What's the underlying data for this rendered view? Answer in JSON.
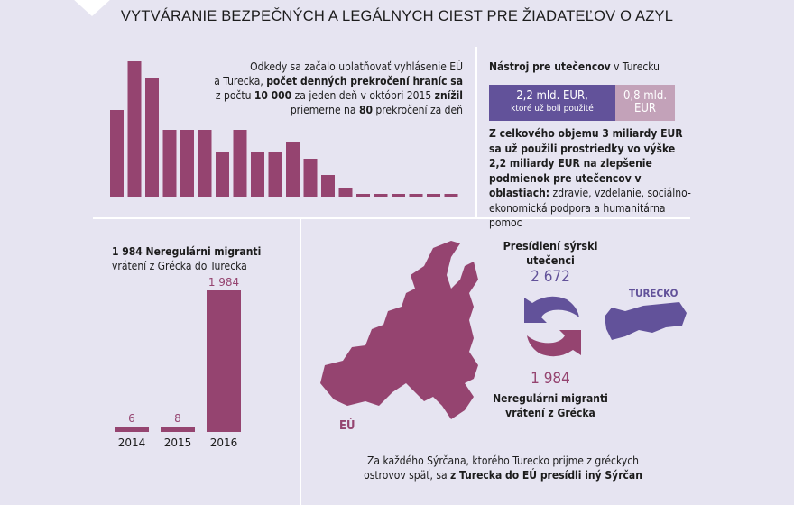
{
  "title": "VYTVÁRANIE BEZPEČNÝCH A LEGÁLNYCH CIEST PRE ŽIADATEĽOV O AZYL",
  "crossings": {
    "text_1": "Odkedy sa začalo uplatňovať vyhlásenie EÚ",
    "text_2a": "a Turecka, ",
    "text_2b": "počet denných prekročení hraníc sa",
    "text_3a": "z počtu ",
    "text_3b": "10 000",
    "text_3c": " za jeden deň v októbri 2015 ",
    "text_3d": "znížil",
    "text_4a": "priemerne na ",
    "text_4b": "80",
    "text_4c": " prekročení za deň"
  },
  "facility": {
    "heading_bold": "Nástroj pre utečencov",
    "heading_rest": " v Turecku",
    "used_value": "2,2 mld. EUR,",
    "used_label": "ktoré už boli použité",
    "remaining_1": "0,8 mld.",
    "remaining_2": "EUR",
    "used_fraction": 0.733,
    "body_bold": "Z celkového objemu 3 miliardy EUR sa už použili prostriedky vo výške 2,2 miliardy EUR na zlepšenie podmienok pre utečencov v oblastiach:",
    "body_rest": "zdravie, vzdelanie, sociálno-ekonomická podpora a humanitárna pomoc",
    "colors": {
      "used": "#62529a",
      "remaining": "#c3a2b9"
    }
  },
  "returns": {
    "heading_bold": "1 984 Neregulárni migranti",
    "heading_rest": "vrátení z Grécka do Turecka"
  },
  "swap": {
    "resettled_label": "Presídlení sýrski utečenci",
    "resettled_value": "2 672",
    "returned_value": "1 984",
    "returned_label_1": "Neregulárni migranti",
    "returned_label_2": "vrátení z Grécka",
    "turkey_label": "TURECKO",
    "eu_label": "EÚ",
    "footer_1": "Za každého Sýrčana, ktorého Turecko prijme z gréckych",
    "footer_2a": "ostrovov späť, sa ",
    "footer_2b": "z Turecka do EÚ presídli iný Sýrčan",
    "colors": {
      "purple": "#62529a",
      "magenta": "#954470"
    }
  },
  "chart_data": [
    {
      "type": "bar",
      "description_units": "relative daily border crossings (no axis printed)",
      "values": [
        97,
        151,
        133,
        75,
        75,
        75,
        50,
        75,
        50,
        50,
        61,
        43,
        25,
        11,
        4,
        4,
        4,
        4,
        4,
        4
      ],
      "color": "#954470"
    },
    {
      "type": "bar",
      "categories": [
        "2014",
        "2015",
        "2016"
      ],
      "values": [
        6,
        8,
        1984
      ],
      "data_labels": [
        "6",
        "8",
        "1 984"
      ],
      "color": "#954470"
    }
  ]
}
